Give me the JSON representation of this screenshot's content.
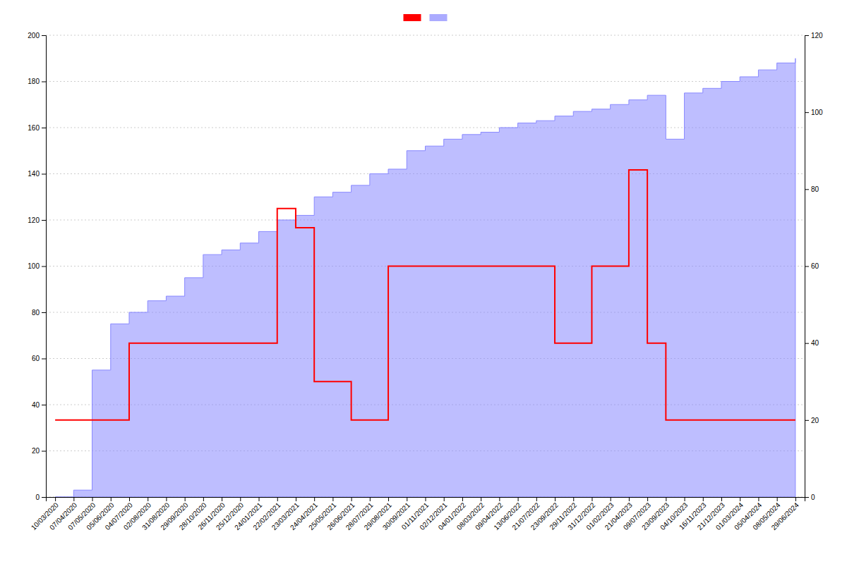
{
  "chart_data": {
    "type": "step",
    "categories": [
      "10/03/2020",
      "07/04/2020",
      "07/05/2020",
      "05/06/2020",
      "04/07/2020",
      "02/08/2020",
      "31/08/2020",
      "29/09/2020",
      "28/10/2020",
      "26/11/2020",
      "25/12/2020",
      "24/01/2021",
      "22/02/2021",
      "23/03/2021",
      "24/04/2021",
      "25/05/2021",
      "26/06/2021",
      "28/07/2021",
      "29/08/2021",
      "30/09/2021",
      "01/11/2021",
      "02/12/2021",
      "04/01/2022",
      "08/03/2022",
      "09/04/2022",
      "13/06/2022",
      "21/07/2022",
      "23/09/2022",
      "29/11/2022",
      "31/12/2022",
      "01/02/2023",
      "21/04/2023",
      "09/07/2023",
      "23/09/2023",
      "04/10/2023",
      "16/11/2023",
      "21/12/2023",
      "01/03/2024",
      "05/04/2024",
      "08/05/2024",
      "29/06/2024"
    ],
    "series": [
      {
        "type": "area",
        "color": "#8888ff",
        "values": [
          0,
          3,
          55,
          75,
          80,
          85,
          87,
          95,
          105,
          107,
          110,
          115,
          120,
          122,
          130,
          132,
          135,
          140,
          142,
          150,
          152,
          155,
          157,
          158,
          160,
          162,
          163,
          165,
          167,
          168,
          170,
          172,
          174,
          155,
          175,
          177,
          180,
          182,
          185,
          188,
          190
        ]
      },
      {
        "type": "line",
        "color": "#ff0000",
        "axis": "y2",
        "values": [
          20,
          20,
          20,
          20,
          40,
          40,
          40,
          40,
          40,
          40,
          40,
          40,
          75,
          70,
          30,
          30,
          20,
          20,
          60,
          60,
          60,
          60,
          60,
          60,
          60,
          60,
          60,
          40,
          40,
          60,
          60,
          85,
          40,
          20,
          20,
          20,
          20,
          20,
          20,
          20,
          20
        ]
      }
    ],
    "ylim": [
      0,
      200
    ],
    "yticks": [
      0,
      20,
      40,
      60,
      80,
      100,
      120,
      140,
      160,
      180,
      200
    ],
    "y2lim": [
      0,
      120
    ],
    "y2ticks": [
      0,
      20,
      40,
      60,
      80,
      100,
      120
    ],
    "grid": true,
    "legend": "top"
  }
}
